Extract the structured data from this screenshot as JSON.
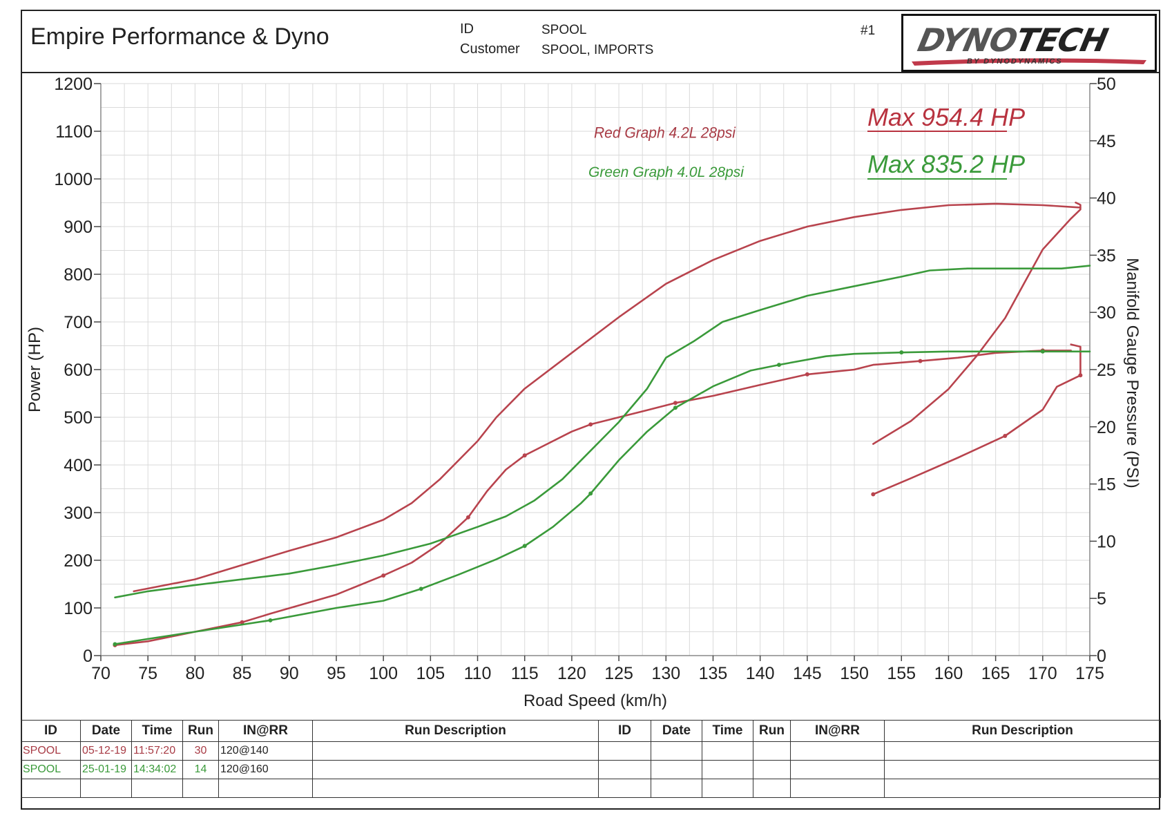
{
  "header": {
    "company": "Empire Performance & Dyno",
    "id_label": "ID",
    "id_value": "SPOOL",
    "customer_label": "Customer",
    "customer_value": "SPOOL, IMPORTS",
    "sheet_number": "#1",
    "logo_text_a": "DYNO",
    "logo_text_b": "TECH",
    "logo_sub": "BY DYNODYNAMICS"
  },
  "chart_data": {
    "type": "line",
    "xlabel": "Road Speed (km/h)",
    "ylabel": "Power (HP)",
    "y2label": "Manifold Gauge Pressure (PSI)",
    "xlim": [
      70,
      175
    ],
    "ylim": [
      0,
      1200
    ],
    "y2lim": [
      0,
      50
    ],
    "xticks": [
      70,
      75,
      80,
      85,
      90,
      95,
      100,
      105,
      110,
      115,
      120,
      125,
      130,
      135,
      140,
      145,
      150,
      155,
      160,
      165,
      170,
      175
    ],
    "yticks": [
      0,
      100,
      200,
      300,
      400,
      500,
      600,
      700,
      800,
      900,
      1000,
      1100,
      1200
    ],
    "y2ticks": [
      0,
      5,
      10,
      15,
      20,
      25,
      30,
      35,
      40,
      45,
      50
    ],
    "grid": true,
    "annotations": [
      {
        "text": "Red Graph 4.2L 28psi",
        "color": "#a83b45"
      },
      {
        "text": "Green Graph 4.0L 28psi",
        "color": "#3a9a3a"
      },
      {
        "text": "Max 954.4 HP",
        "color": "#b8323f"
      },
      {
        "text": "Max 835.2 HP",
        "color": "#3a9a3a"
      }
    ],
    "series": [
      {
        "key": "red-power",
        "color": "#b8434d",
        "axis": "left",
        "points": [
          [
            73.5,
            135
          ],
          [
            80,
            160
          ],
          [
            85,
            190
          ],
          [
            90,
            220
          ],
          [
            95,
            248
          ],
          [
            100,
            285
          ],
          [
            103,
            320
          ],
          [
            106,
            370
          ],
          [
            110,
            450
          ],
          [
            112,
            500
          ],
          [
            115,
            560
          ],
          [
            120,
            635
          ],
          [
            125,
            710
          ],
          [
            130,
            780
          ],
          [
            135,
            830
          ],
          [
            140,
            870
          ],
          [
            145,
            900
          ],
          [
            150,
            920
          ],
          [
            155,
            935
          ],
          [
            160,
            945
          ],
          [
            165,
            948
          ],
          [
            170,
            945
          ],
          [
            174,
            940
          ]
        ]
      },
      {
        "key": "red-torque",
        "color": "#b8434d",
        "axis": "left",
        "dots": true,
        "points": [
          [
            71.5,
            22
          ],
          [
            75,
            30
          ],
          [
            80,
            50
          ],
          [
            85,
            70
          ],
          [
            88,
            88
          ],
          [
            95,
            128
          ],
          [
            100,
            168
          ],
          [
            103,
            195
          ],
          [
            106,
            235
          ],
          [
            109,
            290
          ],
          [
            111,
            345
          ],
          [
            113,
            390
          ],
          [
            115,
            420
          ],
          [
            117,
            440
          ],
          [
            120,
            470
          ],
          [
            122,
            485
          ],
          [
            125,
            500
          ],
          [
            128,
            515
          ],
          [
            131,
            530
          ],
          [
            135,
            545
          ],
          [
            140,
            568
          ],
          [
            145,
            590
          ],
          [
            150,
            600
          ],
          [
            152,
            610
          ],
          [
            157,
            618
          ],
          [
            161,
            625
          ],
          [
            165,
            635
          ],
          [
            170,
            640
          ],
          [
            173,
            640
          ]
        ]
      },
      {
        "key": "red-boost",
        "color": "#b8434d",
        "axis": "right",
        "dots": true,
        "points": [
          [
            152,
            14.1
          ],
          [
            156,
            15.5
          ],
          [
            161,
            17.3
          ],
          [
            166,
            19.2
          ],
          [
            170,
            21.5
          ],
          [
            171.5,
            23.5
          ],
          [
            174,
            24.5
          ],
          [
            174,
            27.0
          ],
          [
            173,
            27.2
          ]
        ]
      },
      {
        "key": "red-boost-2",
        "color": "#b8434d",
        "axis": "right",
        "points": [
          [
            152,
            18.5
          ],
          [
            156,
            20.5
          ],
          [
            160,
            23.3
          ],
          [
            163,
            26.2
          ],
          [
            166,
            29.5
          ],
          [
            168,
            32.5
          ],
          [
            170,
            35.5
          ],
          [
            173,
            38.2
          ],
          [
            174,
            39.0
          ],
          [
            174,
            39.4
          ],
          [
            173.5,
            39.6
          ]
        ]
      },
      {
        "key": "green-power",
        "color": "#3a9a3a",
        "axis": "left",
        "points": [
          [
            71.5,
            122
          ],
          [
            75,
            135
          ],
          [
            80,
            148
          ],
          [
            85,
            160
          ],
          [
            90,
            172
          ],
          [
            95,
            190
          ],
          [
            100,
            210
          ],
          [
            105,
            235
          ],
          [
            110,
            270
          ],
          [
            113,
            292
          ],
          [
            116,
            325
          ],
          [
            119,
            370
          ],
          [
            122,
            430
          ],
          [
            125,
            490
          ],
          [
            128,
            560
          ],
          [
            130,
            625
          ],
          [
            133,
            660
          ],
          [
            136,
            700
          ],
          [
            140,
            725
          ],
          [
            145,
            755
          ],
          [
            150,
            775
          ],
          [
            155,
            795
          ],
          [
            158,
            808
          ],
          [
            162,
            812
          ],
          [
            167,
            812
          ],
          [
            172,
            812
          ],
          [
            175,
            818
          ]
        ]
      },
      {
        "key": "green-torque",
        "color": "#3a9a3a",
        "axis": "left",
        "dots": true,
        "points": [
          [
            71.5,
            24
          ],
          [
            75,
            35
          ],
          [
            80,
            50
          ],
          [
            88,
            74
          ],
          [
            95,
            100
          ],
          [
            100,
            115
          ],
          [
            104,
            140
          ],
          [
            108,
            170
          ],
          [
            112,
            202
          ],
          [
            115,
            230
          ],
          [
            118,
            270
          ],
          [
            121,
            320
          ],
          [
            122,
            340
          ],
          [
            125,
            410
          ],
          [
            128,
            470
          ],
          [
            131,
            520
          ],
          [
            135,
            565
          ],
          [
            139,
            598
          ],
          [
            142,
            610
          ],
          [
            147,
            628
          ],
          [
            150,
            633
          ],
          [
            155,
            636
          ],
          [
            160,
            638
          ],
          [
            165,
            638
          ],
          [
            170,
            638
          ],
          [
            175,
            638
          ]
        ]
      }
    ]
  },
  "table": {
    "headers": [
      "ID",
      "Date",
      "Time",
      "Run",
      "IN@RR",
      "Run Description",
      "ID",
      "Date",
      "Time",
      "Run",
      "IN@RR",
      "Run Description"
    ],
    "rows": [
      {
        "color": "red",
        "id": "SPOOL",
        "date": "05-12-19",
        "time": "11:57:20",
        "run": "30",
        "inrr": "120@140"
      },
      {
        "color": "green",
        "id": "SPOOL",
        "date": "25-01-19",
        "time": "14:34:02",
        "run": "14",
        "inrr": "120@160"
      }
    ]
  }
}
